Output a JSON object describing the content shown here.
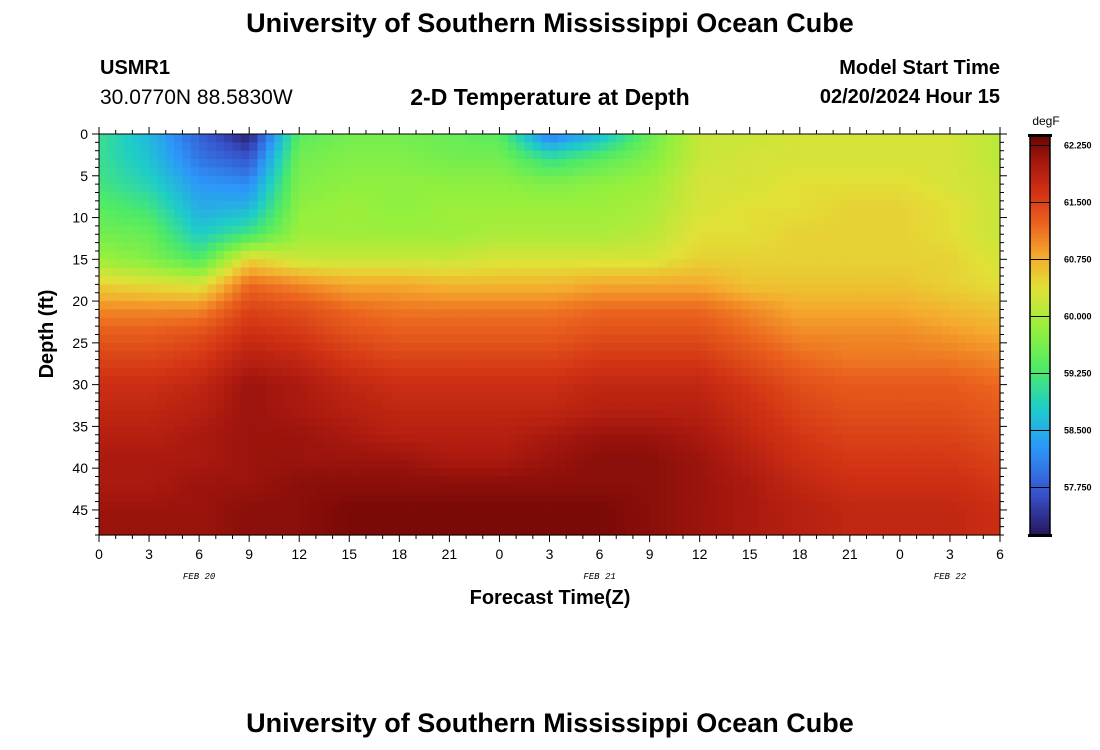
{
  "header": {
    "title": "University of Southern Mississippi Ocean Cube",
    "station_id": "USMR1",
    "station_coords": "30.0770N  88.5830W",
    "plot_title": "2-D Temperature at Depth",
    "start_label": "Model Start Time",
    "start_value": "02/20/2024 Hour 15"
  },
  "footer": {
    "title": "University of Southern Mississippi Ocean Cube"
  },
  "chart_data": {
    "type": "heatmap",
    "title": "2-D Temperature at Depth",
    "xlabel": "Forecast Time(Z)",
    "ylabel": "Depth (ft)",
    "x_tick_labels": [
      "0",
      "3",
      "6",
      "9",
      "12",
      "15",
      "18",
      "21",
      "0",
      "3",
      "6",
      "9",
      "12",
      "15",
      "18",
      "21",
      "0",
      "3",
      "6"
    ],
    "x_date_labels": [
      {
        "label": "FEB 20",
        "hour_index": 6
      },
      {
        "label": "FEB 21",
        "hour_index": 30
      },
      {
        "label": "FEB 22",
        "hour_index": 51
      }
    ],
    "x_range_hours": [
      0,
      54
    ],
    "y_tick_labels": [
      "0",
      "5",
      "10",
      "15",
      "20",
      "25",
      "30",
      "35",
      "40",
      "45"
    ],
    "y_ticks": [
      0,
      5,
      10,
      15,
      20,
      25,
      30,
      35,
      40,
      45
    ],
    "ylim": [
      0,
      48
    ],
    "y_inverted": true,
    "colorbar": {
      "unit": "degF",
      "min": 57.125,
      "max": 62.375,
      "tick_values": [
        62.25,
        61.5,
        60.75,
        60.0,
        59.25,
        58.5,
        57.75
      ],
      "tick_labels": [
        "62.250",
        "61.500",
        "60.750",
        "60.000",
        "59.250",
        "58.500",
        "57.750"
      ]
    },
    "grid_hours": [
      0,
      3,
      6,
      9,
      12,
      15,
      18,
      21,
      24,
      27,
      30,
      33,
      36,
      39,
      42,
      45,
      48,
      51,
      54
    ],
    "grid_depths": [
      0,
      3,
      6,
      9,
      12,
      15,
      18,
      21,
      24,
      27,
      30,
      33,
      36,
      39,
      42,
      45,
      48
    ],
    "values": [
      [
        59.1,
        58.6,
        57.8,
        57.2,
        59.4,
        59.6,
        59.6,
        59.5,
        59.4,
        58.0,
        58.6,
        59.5,
        60.2,
        60.2,
        60.3,
        60.3,
        60.3,
        60.3,
        60.1
      ],
      [
        59.1,
        58.7,
        58.0,
        57.7,
        59.6,
        59.7,
        59.7,
        59.6,
        59.6,
        59.1,
        59.4,
        59.7,
        60.2,
        60.3,
        60.3,
        60.3,
        60.3,
        60.3,
        60.1
      ],
      [
        59.2,
        58.9,
        58.3,
        58.2,
        59.7,
        59.8,
        59.8,
        59.8,
        59.8,
        59.7,
        59.8,
        59.9,
        60.3,
        60.3,
        60.4,
        60.4,
        60.4,
        60.3,
        60.2
      ],
      [
        59.4,
        59.2,
        58.5,
        58.6,
        59.8,
        59.9,
        59.8,
        59.9,
        59.9,
        59.9,
        59.9,
        60.0,
        60.3,
        60.4,
        60.4,
        60.5,
        60.5,
        60.4,
        60.2
      ],
      [
        59.6,
        59.5,
        58.8,
        59.2,
        59.9,
        59.9,
        59.9,
        59.9,
        60.0,
        60.0,
        60.0,
        60.1,
        60.4,
        60.4,
        60.5,
        60.5,
        60.5,
        60.4,
        60.2
      ],
      [
        59.9,
        59.7,
        59.3,
        60.5,
        60.2,
        60.2,
        60.2,
        60.2,
        60.3,
        60.3,
        60.3,
        60.3,
        60.5,
        60.5,
        60.5,
        60.5,
        60.5,
        60.5,
        60.3
      ],
      [
        60.5,
        60.4,
        60.3,
        61.2,
        61.0,
        60.8,
        60.8,
        60.7,
        60.7,
        60.7,
        60.8,
        60.8,
        60.8,
        60.6,
        60.6,
        60.6,
        60.6,
        60.5,
        60.4
      ],
      [
        61.0,
        61.0,
        61.0,
        61.5,
        61.4,
        61.2,
        61.1,
        61.1,
        61.1,
        61.1,
        61.2,
        61.2,
        61.2,
        61.0,
        60.8,
        60.8,
        60.8,
        60.7,
        60.6
      ],
      [
        61.3,
        61.3,
        61.4,
        61.7,
        61.6,
        61.4,
        61.3,
        61.3,
        61.3,
        61.3,
        61.4,
        61.4,
        61.4,
        61.2,
        61.0,
        61.0,
        61.0,
        60.9,
        60.8
      ],
      [
        61.5,
        61.5,
        61.6,
        61.9,
        61.8,
        61.6,
        61.5,
        61.5,
        61.5,
        61.5,
        61.6,
        61.6,
        61.6,
        61.4,
        61.2,
        61.1,
        61.1,
        61.1,
        61.0
      ],
      [
        61.7,
        61.7,
        61.8,
        62.1,
        62.0,
        61.8,
        61.7,
        61.7,
        61.7,
        61.7,
        61.8,
        61.8,
        61.8,
        61.6,
        61.4,
        61.3,
        61.3,
        61.3,
        61.2
      ],
      [
        61.8,
        61.8,
        61.9,
        62.1,
        62.0,
        61.9,
        61.8,
        61.8,
        61.8,
        61.8,
        61.9,
        61.9,
        61.9,
        61.7,
        61.5,
        61.4,
        61.4,
        61.4,
        61.3
      ],
      [
        61.9,
        61.9,
        62.0,
        62.1,
        62.1,
        62.0,
        61.9,
        61.9,
        61.9,
        62.0,
        62.1,
        62.1,
        62.0,
        61.8,
        61.6,
        61.5,
        61.5,
        61.5,
        61.4
      ],
      [
        62.0,
        62.0,
        62.0,
        62.1,
        62.1,
        62.1,
        62.1,
        62.0,
        62.0,
        62.1,
        62.2,
        62.2,
        62.1,
        61.9,
        61.7,
        61.6,
        61.6,
        61.6,
        61.5
      ],
      [
        62.0,
        62.0,
        62.1,
        62.1,
        62.2,
        62.2,
        62.2,
        62.2,
        62.2,
        62.2,
        62.2,
        62.2,
        62.1,
        62.0,
        61.8,
        61.7,
        61.7,
        61.7,
        61.6
      ],
      [
        62.1,
        62.1,
        62.1,
        62.2,
        62.2,
        62.3,
        62.3,
        62.3,
        62.3,
        62.3,
        62.3,
        62.2,
        62.1,
        62.0,
        61.9,
        61.8,
        61.8,
        61.8,
        61.7
      ],
      [
        62.1,
        62.1,
        62.1,
        62.2,
        62.2,
        62.3,
        62.3,
        62.3,
        62.3,
        62.3,
        62.3,
        62.2,
        62.1,
        62.0,
        61.9,
        61.8,
        61.8,
        61.8,
        61.7
      ]
    ]
  }
}
